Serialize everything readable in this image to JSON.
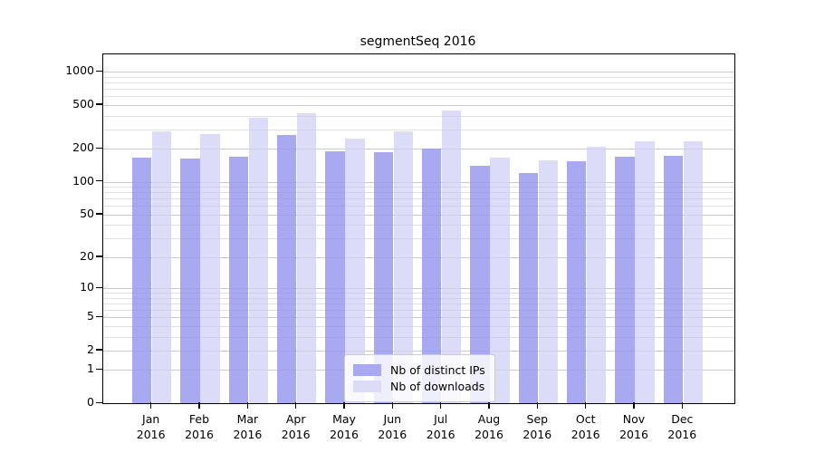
{
  "chart_data": {
    "type": "bar",
    "title": "segmentSeq 2016",
    "categories": [
      "Jan",
      "Feb",
      "Mar",
      "Apr",
      "May",
      "Jun",
      "Jul",
      "Aug",
      "Sep",
      "Oct",
      "Nov",
      "Dec"
    ],
    "category_year": "2016",
    "series": [
      {
        "name": "Nb of distinct IPs",
        "color": "#a9a9f1",
        "values": [
          165,
          162,
          170,
          265,
          190,
          185,
          200,
          140,
          120,
          153,
          170,
          172
        ]
      },
      {
        "name": "Nb of downloads",
        "color": "#dcdcf8",
        "values": [
          288,
          275,
          380,
          420,
          248,
          287,
          450,
          167,
          158,
          207,
          235,
          236
        ]
      }
    ],
    "yscale": "log1p",
    "ylim": [
      0,
      1400
    ],
    "y_ticks": [
      0,
      1,
      2,
      5,
      10,
      20,
      50,
      100,
      200,
      500,
      1000
    ],
    "y_minor_ticks": [
      3,
      4,
      6,
      7,
      8,
      9,
      30,
      40,
      60,
      70,
      80,
      90,
      300,
      400,
      600,
      700,
      800,
      900
    ],
    "xlabel": "",
    "ylabel": "",
    "grid": "on",
    "legend_position": "bottom-center",
    "colors": {
      "major_grid": "#d7d7d7",
      "minor_grid": "#eeeeee",
      "axis": "#000000",
      "background": "#ffffff"
    }
  }
}
